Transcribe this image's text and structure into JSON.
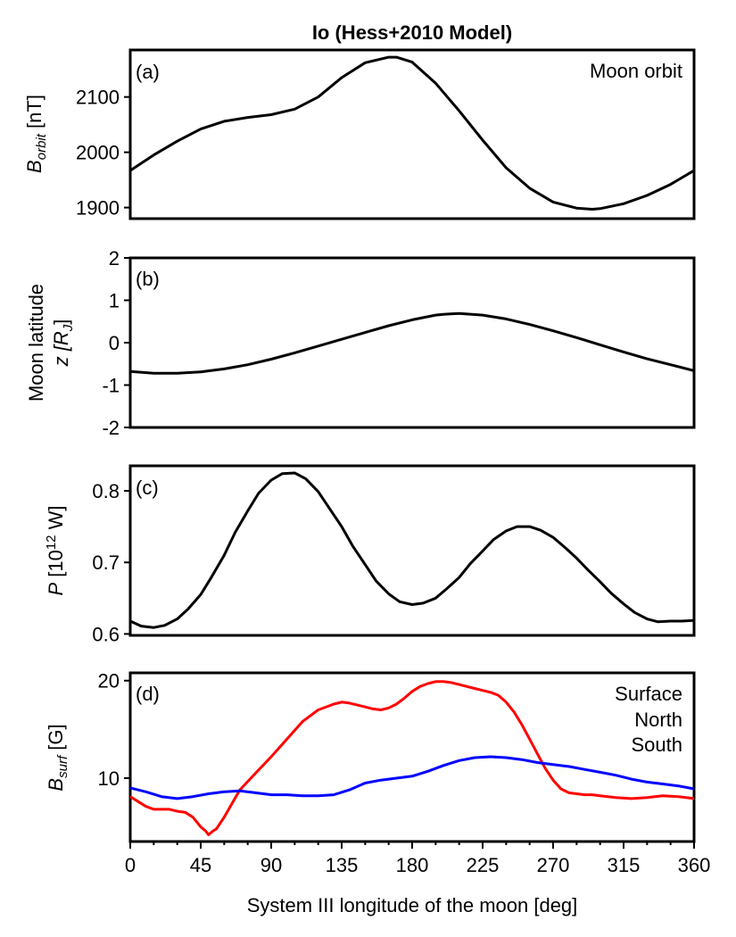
{
  "chart_data": [
    {
      "panel": "(a)",
      "type": "line",
      "title": "Io (Hess+2010 Model)",
      "ylabel_main": "B",
      "ylabel_sub": "orbit",
      "ylabel_unit": " [nT]",
      "annotation": "Moon orbit",
      "xlim": [
        0,
        360
      ],
      "ylim": [
        1880,
        2185
      ],
      "yticks": [
        1900,
        2000,
        2100
      ],
      "ytick_labels": [
        "1900",
        "2000",
        "2100"
      ],
      "x": [
        0,
        15,
        30,
        45,
        60,
        75,
        90,
        105,
        120,
        135,
        150,
        165,
        170,
        180,
        195,
        210,
        225,
        240,
        255,
        270,
        285,
        295,
        300,
        315,
        330,
        345,
        360
      ],
      "series": [
        {
          "color": "#000000",
          "values": [
            1967,
            1995,
            2020,
            2042,
            2056,
            2063,
            2068,
            2078,
            2100,
            2135,
            2162,
            2172,
            2172,
            2163,
            2125,
            2075,
            2022,
            1972,
            1935,
            1910,
            1899,
            1897,
            1898,
            1907,
            1922,
            1942,
            1967
          ]
        }
      ]
    },
    {
      "panel": "(b)",
      "type": "line",
      "ylabel_line1": "Moon latitude",
      "ylabel_line2": "z [R",
      "ylabel_sub": "J",
      "ylabel_end": "]",
      "xlim": [
        0,
        360
      ],
      "ylim": [
        -2,
        2
      ],
      "yticks": [
        -2,
        -1,
        0,
        1,
        2
      ],
      "ytick_labels": [
        "-2",
        "-1",
        "0",
        "1",
        "2"
      ],
      "x": [
        0,
        15,
        30,
        45,
        60,
        75,
        90,
        105,
        120,
        135,
        150,
        165,
        180,
        195,
        200,
        210,
        225,
        240,
        255,
        270,
        285,
        300,
        315,
        330,
        345,
        360
      ],
      "series": [
        {
          "color": "#000000",
          "values": [
            -0.68,
            -0.72,
            -0.72,
            -0.69,
            -0.62,
            -0.52,
            -0.39,
            -0.24,
            -0.08,
            0.08,
            0.24,
            0.4,
            0.54,
            0.65,
            0.67,
            0.69,
            0.65,
            0.56,
            0.43,
            0.28,
            0.12,
            -0.05,
            -0.22,
            -0.38,
            -0.52,
            -0.66
          ]
        }
      ]
    },
    {
      "panel": "(c)",
      "type": "line",
      "ylabel_main": "P",
      "ylabel_unit_pre": " [10",
      "ylabel_sup": "12",
      "ylabel_unit_post": " W]",
      "xlim": [
        0,
        360
      ],
      "ylim": [
        0.598,
        0.835
      ],
      "yticks": [
        0.6,
        0.7,
        0.8
      ],
      "ytick_labels": [
        "0.6",
        "0.7",
        "0.8"
      ],
      "x": [
        0,
        7,
        15,
        22,
        30,
        37,
        45,
        52,
        60,
        67,
        75,
        82,
        90,
        97,
        105,
        112,
        120,
        127,
        135,
        142,
        150,
        157,
        165,
        172,
        180,
        187,
        195,
        202,
        210,
        217,
        225,
        232,
        240,
        247,
        255,
        262,
        270,
        277,
        285,
        292,
        300,
        307,
        315,
        322,
        330,
        337,
        345,
        352,
        360
      ],
      "series": [
        {
          "color": "#000000",
          "values": [
            0.618,
            0.611,
            0.609,
            0.612,
            0.621,
            0.635,
            0.655,
            0.68,
            0.71,
            0.742,
            0.772,
            0.797,
            0.815,
            0.824,
            0.825,
            0.817,
            0.799,
            0.776,
            0.75,
            0.723,
            0.697,
            0.674,
            0.656,
            0.645,
            0.641,
            0.643,
            0.65,
            0.663,
            0.679,
            0.698,
            0.716,
            0.732,
            0.744,
            0.75,
            0.75,
            0.745,
            0.735,
            0.722,
            0.706,
            0.69,
            0.673,
            0.657,
            0.642,
            0.63,
            0.621,
            0.617,
            0.618,
            0.618,
            0.619
          ]
        }
      ]
    },
    {
      "panel": "(d)",
      "type": "line",
      "ylabel_main": "B",
      "ylabel_sub": "surf",
      "ylabel_unit": " [G]",
      "xlabel": "System III longitude of the moon [deg]",
      "xlim": [
        0,
        360
      ],
      "ylim": [
        3.5,
        20.8
      ],
      "yticks": [
        10,
        20
      ],
      "ytick_labels": [
        "10",
        "20"
      ],
      "xticks": [
        0,
        45,
        90,
        135,
        180,
        225,
        270,
        315,
        360
      ],
      "xtick_labels": [
        "0",
        "45",
        "90",
        "135",
        "180",
        "225",
        "270",
        "315",
        "360"
      ],
      "legend_title": "Surface",
      "series": [
        {
          "name": "North",
          "color": "#ff0000",
          "x": [
            0,
            5,
            10,
            15,
            20,
            25,
            30,
            35,
            40,
            45,
            48,
            50,
            53,
            55,
            60,
            65,
            70,
            80,
            90,
            100,
            110,
            120,
            130,
            135,
            140,
            145,
            150,
            155,
            160,
            165,
            170,
            175,
            180,
            185,
            190,
            195,
            200,
            205,
            210,
            215,
            220,
            225,
            230,
            235,
            240,
            245,
            250,
            255,
            260,
            265,
            270,
            275,
            280,
            285,
            290,
            295,
            300,
            310,
            320,
            330,
            340,
            350,
            360
          ],
          "values": [
            8.1,
            7.6,
            7.1,
            6.8,
            6.8,
            6.8,
            6.6,
            6.5,
            6.0,
            5.0,
            4.6,
            4.2,
            4.6,
            4.8,
            6.0,
            7.4,
            8.8,
            10.5,
            12.2,
            14.0,
            15.8,
            17.0,
            17.6,
            17.8,
            17.7,
            17.5,
            17.3,
            17.1,
            17.0,
            17.2,
            17.6,
            18.2,
            18.9,
            19.4,
            19.7,
            19.9,
            19.9,
            19.8,
            19.6,
            19.4,
            19.2,
            19.0,
            18.8,
            18.5,
            17.8,
            16.8,
            15.5,
            14.0,
            12.5,
            11.0,
            9.8,
            8.9,
            8.5,
            8.4,
            8.3,
            8.3,
            8.2,
            8.0,
            7.9,
            8.0,
            8.2,
            8.1,
            7.9
          ]
        },
        {
          "name": "South",
          "color": "#0000ff",
          "x": [
            0,
            10,
            20,
            30,
            40,
            50,
            60,
            70,
            80,
            90,
            100,
            110,
            120,
            130,
            140,
            150,
            160,
            170,
            180,
            190,
            200,
            210,
            220,
            230,
            240,
            250,
            260,
            270,
            280,
            290,
            300,
            310,
            320,
            330,
            340,
            350,
            360
          ],
          "values": [
            9.0,
            8.6,
            8.1,
            7.9,
            8.1,
            8.4,
            8.6,
            8.7,
            8.5,
            8.3,
            8.3,
            8.2,
            8.2,
            8.3,
            8.8,
            9.5,
            9.8,
            10.0,
            10.2,
            10.7,
            11.3,
            11.8,
            12.1,
            12.2,
            12.1,
            11.9,
            11.6,
            11.4,
            11.2,
            10.9,
            10.6,
            10.3,
            9.9,
            9.6,
            9.4,
            9.2,
            8.9
          ]
        }
      ]
    }
  ]
}
